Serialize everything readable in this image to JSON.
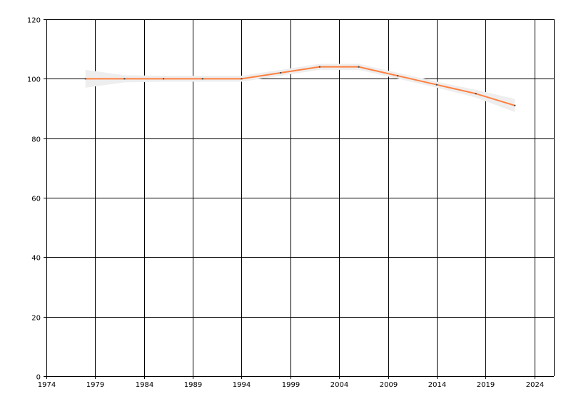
{
  "chart_data": {
    "type": "line",
    "title": "",
    "xlabel": "",
    "ylabel": "",
    "xlim": [
      1974,
      2026
    ],
    "ylim": [
      0,
      120
    ],
    "x_ticks": [
      1974,
      1979,
      1984,
      1989,
      1994,
      1999,
      2004,
      2009,
      2014,
      2019,
      2024
    ],
    "y_ticks": [
      0,
      20,
      40,
      60,
      80,
      100,
      120
    ],
    "grid": true,
    "series": [
      {
        "x": [
          1978,
          1982,
          1986,
          1990,
          1994,
          1998,
          2002,
          2006,
          2010,
          2014,
          2018,
          2022
        ],
        "values": [
          100,
          100,
          100,
          100,
          100,
          102,
          104,
          104,
          101,
          98,
          95,
          91
        ],
        "lower": [
          97,
          98.8,
          99,
          99,
          99,
          101,
          103,
          103,
          100,
          97,
          93.7,
          88.8
        ],
        "upper": [
          103,
          101.2,
          101,
          101,
          101,
          103,
          105,
          105,
          102,
          99,
          96.3,
          93.2
        ],
        "color": "#FF7F3F",
        "band_color": "#EEEEEE",
        "marker_color": "#444444"
      }
    ]
  }
}
